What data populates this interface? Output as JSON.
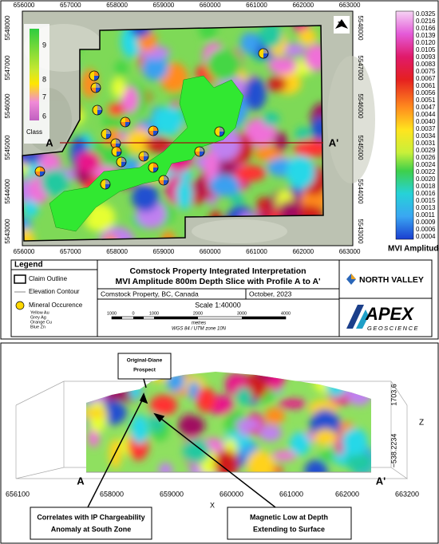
{
  "map": {
    "x_labels": [
      "656000",
      "657000",
      "658000",
      "659000",
      "660000",
      "661000",
      "662000",
      "663000"
    ],
    "y_labels": [
      "5548000",
      "5547000",
      "5546000",
      "5545000",
      "5544000",
      "5543000"
    ],
    "profile_start": "A",
    "profile_end": "A'",
    "north": "N",
    "class_legend": {
      "title": "Class",
      "labels": [
        "9",
        "8",
        "7",
        "6"
      ]
    },
    "colorbar": {
      "title": "MVI Amplitude",
      "labels": [
        "0.0325",
        "0.0216",
        "0.0166",
        "0.0139",
        "0.0120",
        "0.0105",
        "0.0093",
        "0.0083",
        "0.0075",
        "0.0067",
        "0.0061",
        "0.0056",
        "0.0051",
        "0.0047",
        "0.0044",
        "0.0040",
        "0.0037",
        "0.0034",
        "0.0031",
        "0.0029",
        "0.0026",
        "0.0024",
        "0.0022",
        "0.0020",
        "0.0018",
        "0.0016",
        "0.0015",
        "0.0013",
        "0.0011",
        "0.0009",
        "0.0006",
        "0.0004"
      ]
    }
  },
  "legend": {
    "title": "Legend",
    "items": [
      "Claim Outline",
      "Elevation Contour",
      "Mineral Occurence"
    ],
    "mineral_colors": [
      "Yellow Au",
      "Grey Ag",
      "Orange Cu",
      "Blue Zn"
    ]
  },
  "title_block": {
    "title": "Comstock Property Integrated Interpretation",
    "subtitle": "MVI Amplitude 800m Depth Slice with Profile A to A'",
    "location": "Comstock Property, BC, Canada",
    "date": "October, 2023",
    "scale": "Scale 1:40000",
    "scale_ticks": [
      "1000",
      "0",
      "1000",
      "2000",
      "3000",
      "4000"
    ],
    "units": "metres",
    "projection": "WGS 84 / UTM zone 10N"
  },
  "logos": {
    "north_valley": "NORTH VALLEY",
    "apex": "APEX",
    "apex_sub": "GEOSCIENCE"
  },
  "section": {
    "prospect": [
      "Original-Diane",
      "Prospect"
    ],
    "z_labels": [
      "1703.6",
      "−538.2234"
    ],
    "z_title": "Z",
    "x_labels": [
      "656100",
      "658000",
      "659000",
      "660000",
      "661000",
      "662000",
      "663200"
    ],
    "x_title": "X",
    "profile_start": "A",
    "profile_end": "A'",
    "callouts": [
      {
        "lines": [
          "Correlates with IP Chargeability",
          "Anomaly at South Zone"
        ]
      },
      {
        "lines": [
          "Magnetic Low at Depth",
          "Extending to Surface"
        ]
      }
    ]
  }
}
